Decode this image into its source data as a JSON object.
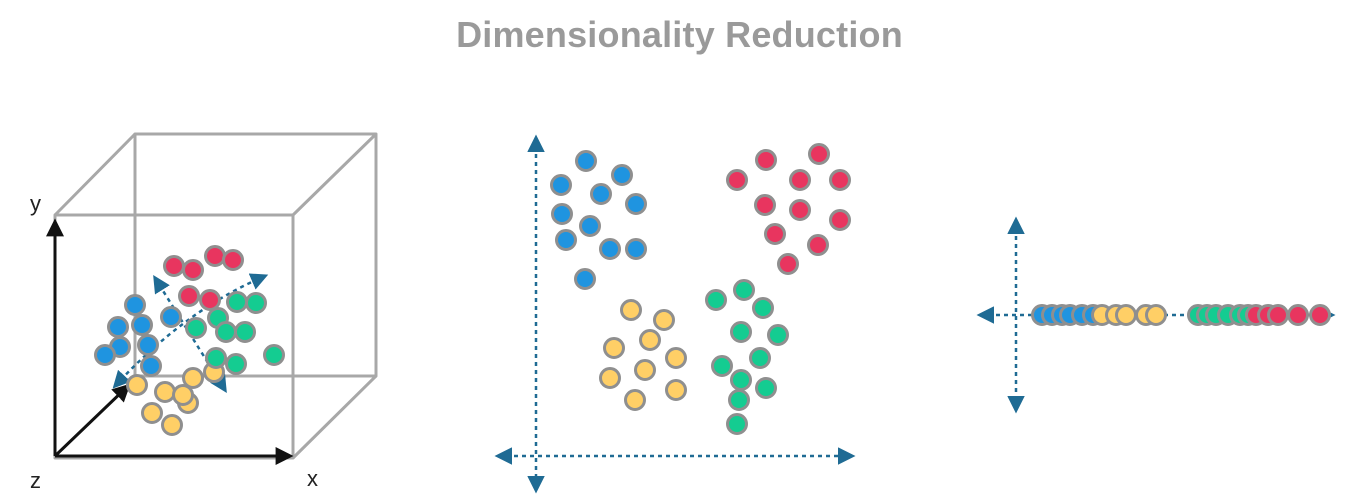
{
  "title": "Dimensionality Reduction",
  "colors": {
    "title": "#9a9a9a",
    "blue": "#1f94e0",
    "red": "#e8355f",
    "green": "#14cc91",
    "yellow": "#ffcf66",
    "outline": "#8f8f8f",
    "dashed_axis": "#1f6b94",
    "cube": "#a8a8a8",
    "solid_axis": "#111111"
  },
  "panels": [
    {
      "name": "3d-panel",
      "axis_labels": {
        "x": "x",
        "y": "y",
        "z": "z"
      }
    },
    {
      "name": "2d-panel"
    },
    {
      "name": "1d-panel"
    }
  ]
}
